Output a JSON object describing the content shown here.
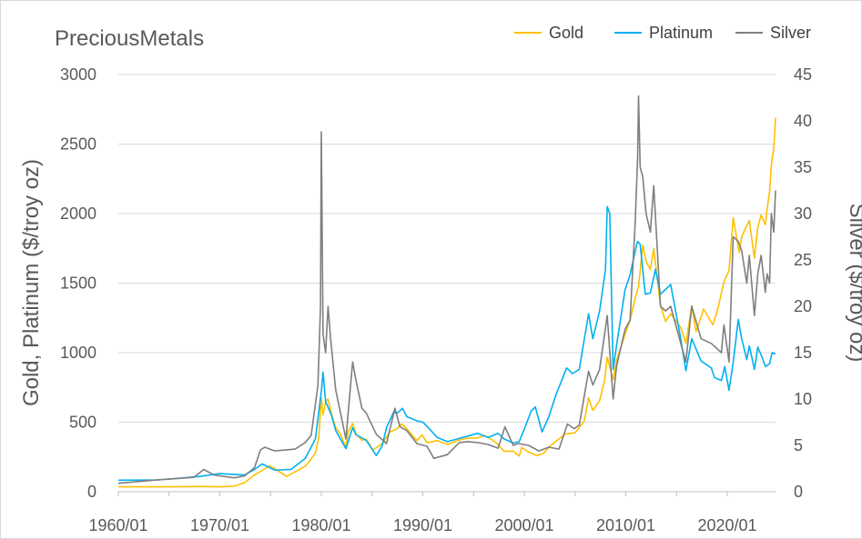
{
  "chart_data": {
    "type": "line",
    "title": "PreciousMetals",
    "y_left_label": "Gold, Platinum ($/troy oz)",
    "y_right_label": "Silver ($/troy oz)",
    "y_left_lim": [
      0,
      3000
    ],
    "y_right_lim": [
      0,
      45
    ],
    "y_left_ticks": [
      "0",
      "500",
      "1000",
      "1500",
      "2000",
      "2500",
      "3000"
    ],
    "y_right_ticks": [
      "0",
      "5",
      "10",
      "15",
      "20",
      "25",
      "30",
      "35",
      "40",
      "45"
    ],
    "x_ticks": [
      "1960/01",
      "1970/01",
      "1980/01",
      "1990/01",
      "2000/01",
      "2010/01",
      "2020/01"
    ],
    "x_range": [
      "1960/01",
      "2024/10"
    ],
    "grid": "horizontal",
    "legend_position": "top-right",
    "series": [
      {
        "name": "Gold",
        "color": "#ffc000",
        "axis": "left",
        "points": [
          [
            "1960/01",
            35
          ],
          [
            "1965/01",
            35
          ],
          [
            "1968/01",
            38
          ],
          [
            "1970/01",
            35
          ],
          [
            "1971/06",
            40
          ],
          [
            "1972/06",
            65
          ],
          [
            "1973/06",
            120
          ],
          [
            "1974/12",
            186
          ],
          [
            "1975/06",
            166
          ],
          [
            "1976/08",
            110
          ],
          [
            "1977/06",
            143
          ],
          [
            "1978/06",
            184
          ],
          [
            "1978/12",
            226
          ],
          [
            "1979/06",
            280
          ],
          [
            "1979/10",
            390
          ],
          [
            "1980/01",
            675
          ],
          [
            "1980/03",
            553
          ],
          [
            "1980/06",
            650
          ],
          [
            "1980/09",
            666
          ],
          [
            "1981/01",
            560
          ],
          [
            "1981/06",
            462
          ],
          [
            "1981/12",
            410
          ],
          [
            "1982/06",
            315
          ],
          [
            "1982/09",
            436
          ],
          [
            "1983/02",
            490
          ],
          [
            "1983/06",
            415
          ],
          [
            "1984/01",
            370
          ],
          [
            "1984/06",
            378
          ],
          [
            "1985/02",
            300
          ],
          [
            "1985/06",
            317
          ],
          [
            "1986/01",
            345
          ],
          [
            "1986/10",
            430
          ],
          [
            "1987/06",
            450
          ],
          [
            "1987/12",
            487
          ],
          [
            "1988/06",
            452
          ],
          [
            "1989/06",
            367
          ],
          [
            "1989/12",
            409
          ],
          [
            "1990/06",
            352
          ],
          [
            "1991/06",
            368
          ],
          [
            "1992/06",
            340
          ],
          [
            "1993/08",
            372
          ],
          [
            "1994/06",
            385
          ],
          [
            "1995/06",
            387
          ],
          [
            "1996/02",
            405
          ],
          [
            "1996/12",
            369
          ],
          [
            "1997/06",
            340
          ],
          [
            "1998/01",
            290
          ],
          [
            "1998/12",
            292
          ],
          [
            "1999/07",
            256
          ],
          [
            "1999/10",
            318
          ],
          [
            "2000/06",
            285
          ],
          [
            "2001/04",
            260
          ],
          [
            "2001/12",
            276
          ],
          [
            "2002/06",
            321
          ],
          [
            "2003/01",
            356
          ],
          [
            "2004/01",
            414
          ],
          [
            "2005/01",
            424
          ],
          [
            "2005/12",
            510
          ],
          [
            "2006/05",
            675
          ],
          [
            "2006/10",
            585
          ],
          [
            "2007/06",
            655
          ],
          [
            "2007/12",
            803
          ],
          [
            "2008/03",
            968
          ],
          [
            "2008/10",
            806
          ],
          [
            "2009/02",
            943
          ],
          [
            "2009/12",
            1130
          ],
          [
            "2010/06",
            1233
          ],
          [
            "2010/12",
            1391
          ],
          [
            "2011/04",
            1474
          ],
          [
            "2011/09",
            1772
          ],
          [
            "2012/01",
            1656
          ],
          [
            "2012/06",
            1598
          ],
          [
            "2012/10",
            1747
          ],
          [
            "2013/06",
            1340
          ],
          [
            "2013/12",
            1225
          ],
          [
            "2014/06",
            1280
          ],
          [
            "2015/06",
            1180
          ],
          [
            "2015/12",
            1068
          ],
          [
            "2016/07",
            1337
          ],
          [
            "2016/12",
            1150
          ],
          [
            "2017/09",
            1314
          ],
          [
            "2018/08",
            1200
          ],
          [
            "2019/02",
            1320
          ],
          [
            "2019/09",
            1510
          ],
          [
            "2020/03",
            1590
          ],
          [
            "2020/08",
            1970
          ],
          [
            "2021/03",
            1720
          ],
          [
            "2021/06",
            1835
          ],
          [
            "2022/03",
            1950
          ],
          [
            "2022/09",
            1680
          ],
          [
            "2023/01",
            1900
          ],
          [
            "2023/05",
            1990
          ],
          [
            "2023/10",
            1920
          ],
          [
            "2023/12",
            2030
          ],
          [
            "2024/03",
            2160
          ],
          [
            "2024/05",
            2350
          ],
          [
            "2024/08",
            2470
          ],
          [
            "2024/10",
            2690
          ]
        ]
      },
      {
        "name": "Platinum",
        "color": "#00b0f0",
        "axis": "left",
        "points": [
          [
            "1960/01",
            83
          ],
          [
            "1964/01",
            85
          ],
          [
            "1968/01",
            110
          ],
          [
            "1970/01",
            130
          ],
          [
            "1972/06",
            120
          ],
          [
            "1973/06",
            160
          ],
          [
            "1974/03",
            200
          ],
          [
            "1975/06",
            155
          ],
          [
            "1977/01",
            160
          ],
          [
            "1978/06",
            240
          ],
          [
            "1979/06",
            380
          ],
          [
            "1980/01",
            720
          ],
          [
            "1980/03",
            860
          ],
          [
            "1980/06",
            650
          ],
          [
            "1981/01",
            550
          ],
          [
            "1981/06",
            440
          ],
          [
            "1982/06",
            310
          ],
          [
            "1983/02",
            460
          ],
          [
            "1983/06",
            410
          ],
          [
            "1984/06",
            370
          ],
          [
            "1985/06",
            260
          ],
          [
            "1986/01",
            330
          ],
          [
            "1986/06",
            460
          ],
          [
            "1987/03",
            580
          ],
          [
            "1987/06",
            560
          ],
          [
            "1988/01",
            600
          ],
          [
            "1988/06",
            540
          ],
          [
            "1989/06",
            510
          ],
          [
            "1990/01",
            500
          ],
          [
            "1990/06",
            470
          ],
          [
            "1991/06",
            390
          ],
          [
            "1992/06",
            360
          ],
          [
            "1993/06",
            380
          ],
          [
            "1994/06",
            400
          ],
          [
            "1995/06",
            420
          ],
          [
            "1996/06",
            390
          ],
          [
            "1997/06",
            420
          ],
          [
            "1998/01",
            380
          ],
          [
            "1998/12",
            350
          ],
          [
            "1999/07",
            360
          ],
          [
            "2000/01",
            450
          ],
          [
            "2000/09",
            580
          ],
          [
            "2001/02",
            610
          ],
          [
            "2001/10",
            430
          ],
          [
            "2002/06",
            540
          ],
          [
            "2003/02",
            690
          ],
          [
            "2004/03",
            890
          ],
          [
            "2004/10",
            850
          ],
          [
            "2005/06",
            880
          ],
          [
            "2006/05",
            1280
          ],
          [
            "2006/10",
            1100
          ],
          [
            "2007/06",
            1300
          ],
          [
            "2008/01",
            1600
          ],
          [
            "2008/03",
            2050
          ],
          [
            "2008/06",
            2000
          ],
          [
            "2008/10",
            880
          ],
          [
            "2009/02",
            1050
          ],
          [
            "2009/12",
            1450
          ],
          [
            "2010/06",
            1560
          ],
          [
            "2010/12",
            1730
          ],
          [
            "2011/03",
            1800
          ],
          [
            "2011/06",
            1780
          ],
          [
            "2011/12",
            1420
          ],
          [
            "2012/06",
            1430
          ],
          [
            "2012/12",
            1600
          ],
          [
            "2013/06",
            1420
          ],
          [
            "2014/06",
            1490
          ],
          [
            "2015/06",
            1100
          ],
          [
            "2015/12",
            870
          ],
          [
            "2016/07",
            1100
          ],
          [
            "2017/06",
            940
          ],
          [
            "2018/06",
            890
          ],
          [
            "2018/10",
            820
          ],
          [
            "2019/06",
            800
          ],
          [
            "2019/10",
            900
          ],
          [
            "2020/03",
            730
          ],
          [
            "2020/08",
            930
          ],
          [
            "2021/02",
            1240
          ],
          [
            "2021/06",
            1100
          ],
          [
            "2021/12",
            950
          ],
          [
            "2022/03",
            1050
          ],
          [
            "2022/09",
            880
          ],
          [
            "2023/01",
            1040
          ],
          [
            "2023/06",
            970
          ],
          [
            "2023/10",
            900
          ],
          [
            "2024/03",
            920
          ],
          [
            "2024/06",
            1000
          ],
          [
            "2024/10",
            990
          ]
        ]
      },
      {
        "name": "Silver",
        "color": "#7f7f7f",
        "axis": "right",
        "points": [
          [
            "1960/01",
            0.91
          ],
          [
            "1964/01",
            1.29
          ],
          [
            "1967/06",
            1.55
          ],
          [
            "1968/06",
            2.4
          ],
          [
            "1969/06",
            1.8
          ],
          [
            "1971/06",
            1.5
          ],
          [
            "1972/06",
            1.7
          ],
          [
            "1973/06",
            2.6
          ],
          [
            "1974/01",
            4.5
          ],
          [
            "1974/06",
            4.8
          ],
          [
            "1975/06",
            4.4
          ],
          [
            "1976/06",
            4.5
          ],
          [
            "1977/06",
            4.6
          ],
          [
            "1978/06",
            5.3
          ],
          [
            "1979/01",
            6.1
          ],
          [
            "1979/09",
            11.5
          ],
          [
            "1979/12",
            20.0
          ],
          [
            "1980/01",
            38.8
          ],
          [
            "1980/03",
            17.0
          ],
          [
            "1980/06",
            15.0
          ],
          [
            "1980/09",
            20.0
          ],
          [
            "1980/12",
            16.5
          ],
          [
            "1981/06",
            11.0
          ],
          [
            "1982/06",
            5.7
          ],
          [
            "1983/02",
            14.0
          ],
          [
            "1983/06",
            12.0
          ],
          [
            "1984/01",
            9.0
          ],
          [
            "1984/06",
            8.5
          ],
          [
            "1985/06",
            6.2
          ],
          [
            "1986/06",
            5.2
          ],
          [
            "1987/04",
            9.0
          ],
          [
            "1987/10",
            7.0
          ],
          [
            "1988/06",
            6.6
          ],
          [
            "1989/06",
            5.2
          ],
          [
            "1990/06",
            4.9
          ],
          [
            "1991/02",
            3.6
          ],
          [
            "1992/06",
            4.0
          ],
          [
            "1993/08",
            5.3
          ],
          [
            "1994/06",
            5.4
          ],
          [
            "1995/06",
            5.3
          ],
          [
            "1996/06",
            5.1
          ],
          [
            "1997/06",
            4.7
          ],
          [
            "1998/02",
            7.0
          ],
          [
            "1998/12",
            5.0
          ],
          [
            "1999/06",
            5.2
          ],
          [
            "2000/06",
            5.0
          ],
          [
            "2001/06",
            4.4
          ],
          [
            "2002/06",
            4.8
          ],
          [
            "2003/06",
            4.6
          ],
          [
            "2004/04",
            7.3
          ],
          [
            "2004/12",
            6.8
          ],
          [
            "2005/06",
            7.2
          ],
          [
            "2006/05",
            13.0
          ],
          [
            "2006/10",
            11.5
          ],
          [
            "2007/06",
            13.2
          ],
          [
            "2008/03",
            19.0
          ],
          [
            "2008/10",
            10.0
          ],
          [
            "2009/02",
            13.5
          ],
          [
            "2009/12",
            17.5
          ],
          [
            "2010/06",
            18.5
          ],
          [
            "2010/12",
            29.0
          ],
          [
            "2011/03",
            36.0
          ],
          [
            "2011/04",
            42.7
          ],
          [
            "2011/06",
            35.0
          ],
          [
            "2011/09",
            34.0
          ],
          [
            "2012/01",
            30.0
          ],
          [
            "2012/06",
            28.0
          ],
          [
            "2012/10",
            33.0
          ],
          [
            "2013/06",
            20.0
          ],
          [
            "2013/12",
            19.5
          ],
          [
            "2014/06",
            20.0
          ],
          [
            "2015/06",
            16.0
          ],
          [
            "2015/12",
            14.0
          ],
          [
            "2016/07",
            20.0
          ],
          [
            "2017/06",
            16.5
          ],
          [
            "2018/06",
            16.0
          ],
          [
            "2019/06",
            15.0
          ],
          [
            "2019/09",
            18.0
          ],
          [
            "2020/03",
            14.0
          ],
          [
            "2020/08",
            27.5
          ],
          [
            "2021/02",
            27.0
          ],
          [
            "2021/06",
            26.0
          ],
          [
            "2021/12",
            22.5
          ],
          [
            "2022/03",
            25.5
          ],
          [
            "2022/09",
            19.0
          ],
          [
            "2023/01",
            23.5
          ],
          [
            "2023/05",
            25.5
          ],
          [
            "2023/10",
            21.5
          ],
          [
            "2023/12",
            23.5
          ],
          [
            "2024/03",
            22.5
          ],
          [
            "2024/05",
            30.0
          ],
          [
            "2024/08",
            28.0
          ],
          [
            "2024/10",
            32.5
          ]
        ]
      }
    ]
  }
}
